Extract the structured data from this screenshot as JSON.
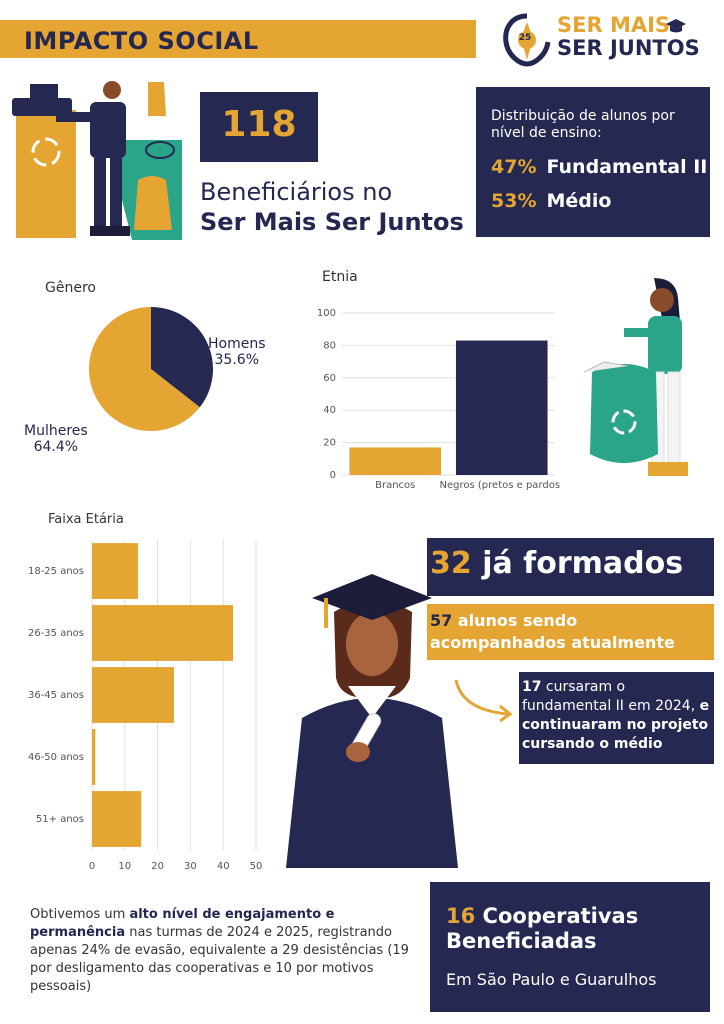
{
  "header": {
    "title": "IMPACTO SOCIAL",
    "logo_line1": "SER MAIS",
    "logo_line2": "SER JUNTOS",
    "logo_badge": "25"
  },
  "beneficiaries": {
    "number": "118",
    "line1": "Beneficiários no",
    "line2": "Ser Mais Ser Juntos"
  },
  "distribution": {
    "title": "Distribuição de alunos por nível de ensino:",
    "rows": [
      {
        "pct": "47%",
        "label": "Fundamental II"
      },
      {
        "pct": "53%",
        "label": "Médio"
      }
    ]
  },
  "gender": {
    "title": "Gênero",
    "men_label": "Homens",
    "men_pct": "35.6%",
    "women_label": "Mulheres",
    "women_pct": "64.4%"
  },
  "ethnicity": {
    "title": "Etnia"
  },
  "age": {
    "title": "Faixa Etária"
  },
  "chart_data": [
    {
      "type": "pie",
      "title": "Gênero",
      "categories": [
        "Homens",
        "Mulheres"
      ],
      "values": [
        35.6,
        64.4
      ],
      "colors": [
        "#252850",
        "#e4a532"
      ]
    },
    {
      "type": "bar",
      "title": "Etnia",
      "categories": [
        "Brancos",
        "Negros (pretos e pardos)"
      ],
      "values": [
        17,
        83
      ],
      "ylim": [
        0,
        100
      ],
      "yticks": [
        0,
        20,
        40,
        60,
        80,
        100
      ],
      "colors": [
        "#e4a532",
        "#252850"
      ],
      "grid": true
    },
    {
      "type": "bar",
      "orientation": "horizontal",
      "title": "Faixa Etária",
      "categories": [
        "18-25 anos",
        "26-35 anos",
        "36-45 anos",
        "46-50 anos",
        "51+ anos"
      ],
      "values": [
        14,
        43,
        25,
        1,
        15
      ],
      "xlim": [
        0,
        50
      ],
      "xticks": [
        0,
        10,
        20,
        30,
        40,
        50
      ],
      "color": "#e4a532",
      "grid": true
    }
  ],
  "graduates": {
    "number": "32",
    "label": "já formados"
  },
  "following": {
    "number": "57",
    "label": "alunos sendo acompanhados atualmente"
  },
  "fundamental": {
    "number": "17",
    "text1": " cursaram o fundamental II em 2024, ",
    "bold": "e continuaram no projeto cursando o médio"
  },
  "engagement": {
    "prefix": "Obtivemos um ",
    "bold": "alto nível de engajamento e permanência",
    "suffix": " nas turmas de 2024 e 2025, registrando apenas 24% de evasão, equivalente a 29 desistências (19 por desligamento das cooperativas e 10 por motivos pessoais)"
  },
  "cooperatives": {
    "number": "16",
    "label": "Cooperativas Beneficiadas",
    "sub": "Em São Paulo e Guarulhos"
  },
  "icons": [
    "recycle-icon",
    "graduation-cap-icon",
    "arrow-icon",
    "glove-icon",
    "mask-icon"
  ]
}
